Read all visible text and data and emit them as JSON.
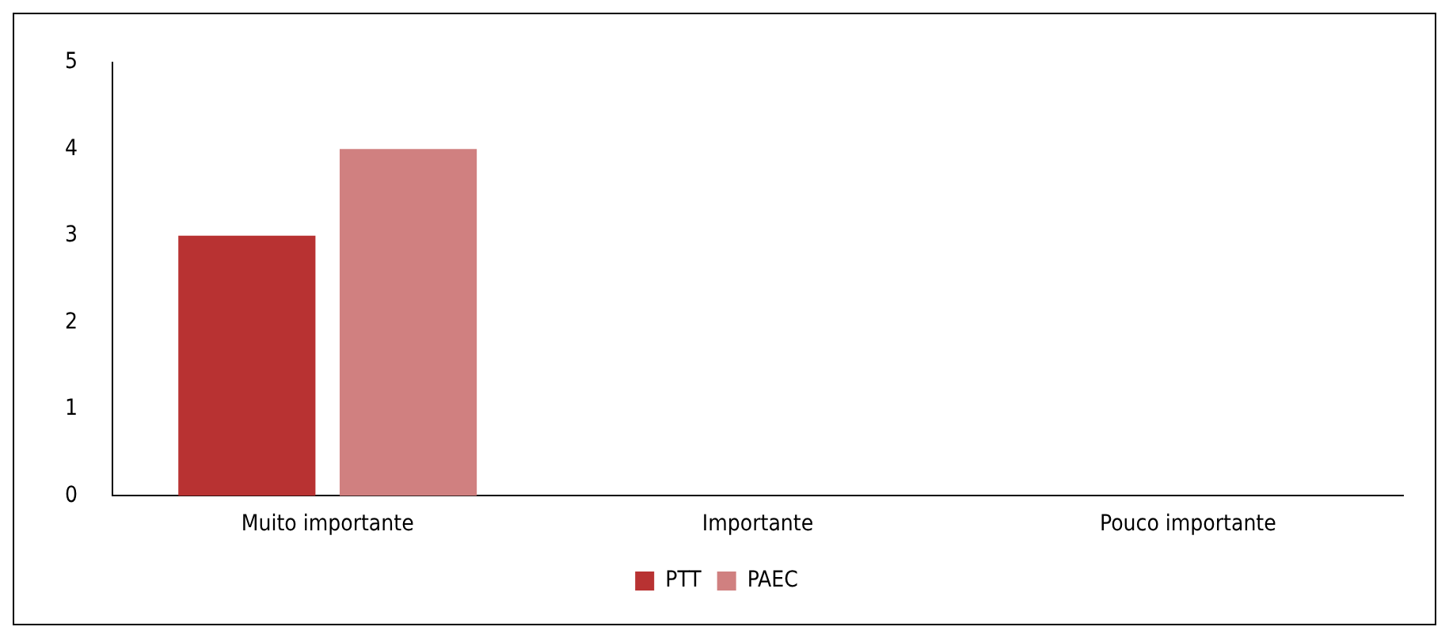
{
  "chart_data": {
    "type": "bar",
    "categories": [
      "Muito importante",
      "Importante",
      "Pouco importante"
    ],
    "series": [
      {
        "name": "PTT",
        "color": "#b83232",
        "values": [
          3,
          0,
          0
        ]
      },
      {
        "name": "PAEC",
        "color": "#d08080",
        "values": [
          4,
          0,
          0
        ]
      }
    ],
    "ylim": [
      0,
      5
    ],
    "yticks": [
      0,
      1,
      2,
      3,
      4,
      5
    ],
    "grid": false,
    "legend": "bottom"
  }
}
